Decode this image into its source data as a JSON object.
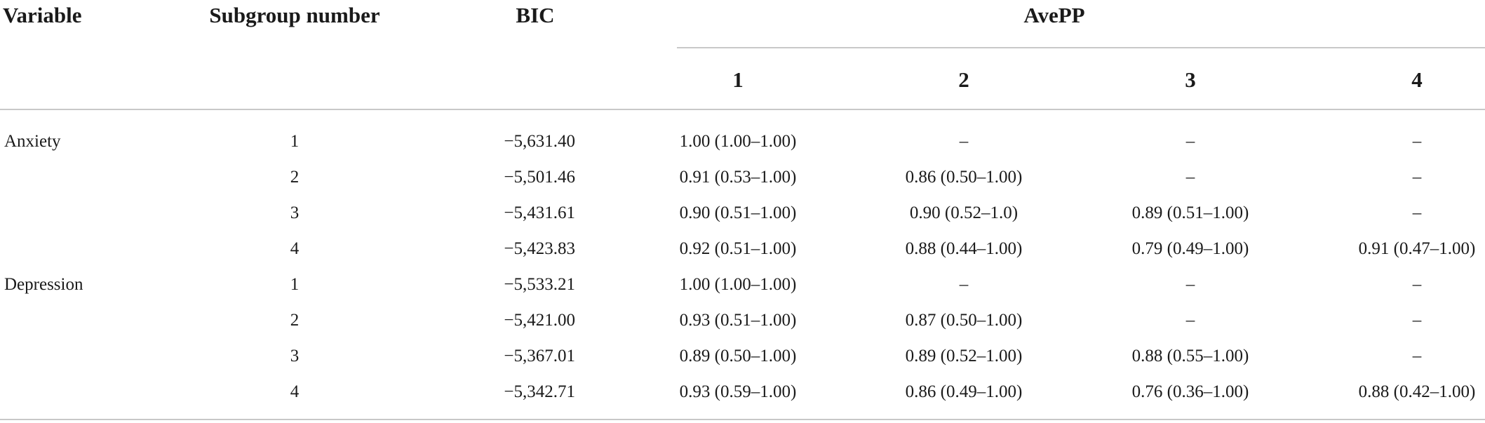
{
  "table": {
    "headers": {
      "variable": "Variable",
      "subgroup": "Subgroup number",
      "bic": "BIC",
      "avepp": "AvePP",
      "avepp_columns": [
        "1",
        "2",
        "3",
        "4"
      ]
    },
    "rows": [
      {
        "variable": "Anxiety",
        "subgroup": "1",
        "bic": "−5,631.40",
        "avepp": [
          "1.00 (1.00–1.00)",
          "–",
          "–",
          "–"
        ]
      },
      {
        "variable": "",
        "subgroup": "2",
        "bic": "−5,501.46",
        "avepp": [
          "0.91 (0.53–1.00)",
          "0.86 (0.50–1.00)",
          "–",
          "–"
        ]
      },
      {
        "variable": "",
        "subgroup": "3",
        "bic": "−5,431.61",
        "avepp": [
          "0.90 (0.51–1.00)",
          "0.90 (0.52–1.0)",
          "0.89 (0.51–1.00)",
          "–"
        ]
      },
      {
        "variable": "",
        "subgroup": "4",
        "bic": "−5,423.83",
        "avepp": [
          "0.92 (0.51–1.00)",
          "0.88 (0.44–1.00)",
          "0.79 (0.49–1.00)",
          "0.91 (0.47–1.00)"
        ]
      },
      {
        "variable": "Depression",
        "subgroup": "1",
        "bic": "−5,533.21",
        "avepp": [
          "1.00 (1.00–1.00)",
          "–",
          "–",
          "–"
        ]
      },
      {
        "variable": "",
        "subgroup": "2",
        "bic": "−5,421.00",
        "avepp": [
          "0.93 (0.51–1.00)",
          "0.87 (0.50–1.00)",
          "–",
          "–"
        ]
      },
      {
        "variable": "",
        "subgroup": "3",
        "bic": "−5,367.01",
        "avepp": [
          "0.89 (0.50–1.00)",
          "0.89 (0.52–1.00)",
          "0.88 (0.55–1.00)",
          "–"
        ]
      },
      {
        "variable": "",
        "subgroup": "4",
        "bic": "−5,342.71",
        "avepp": [
          "0.93 (0.59–1.00)",
          "0.86 (0.49–1.00)",
          "0.76 (0.36–1.00)",
          "0.88 (0.42–1.00)"
        ]
      }
    ]
  }
}
